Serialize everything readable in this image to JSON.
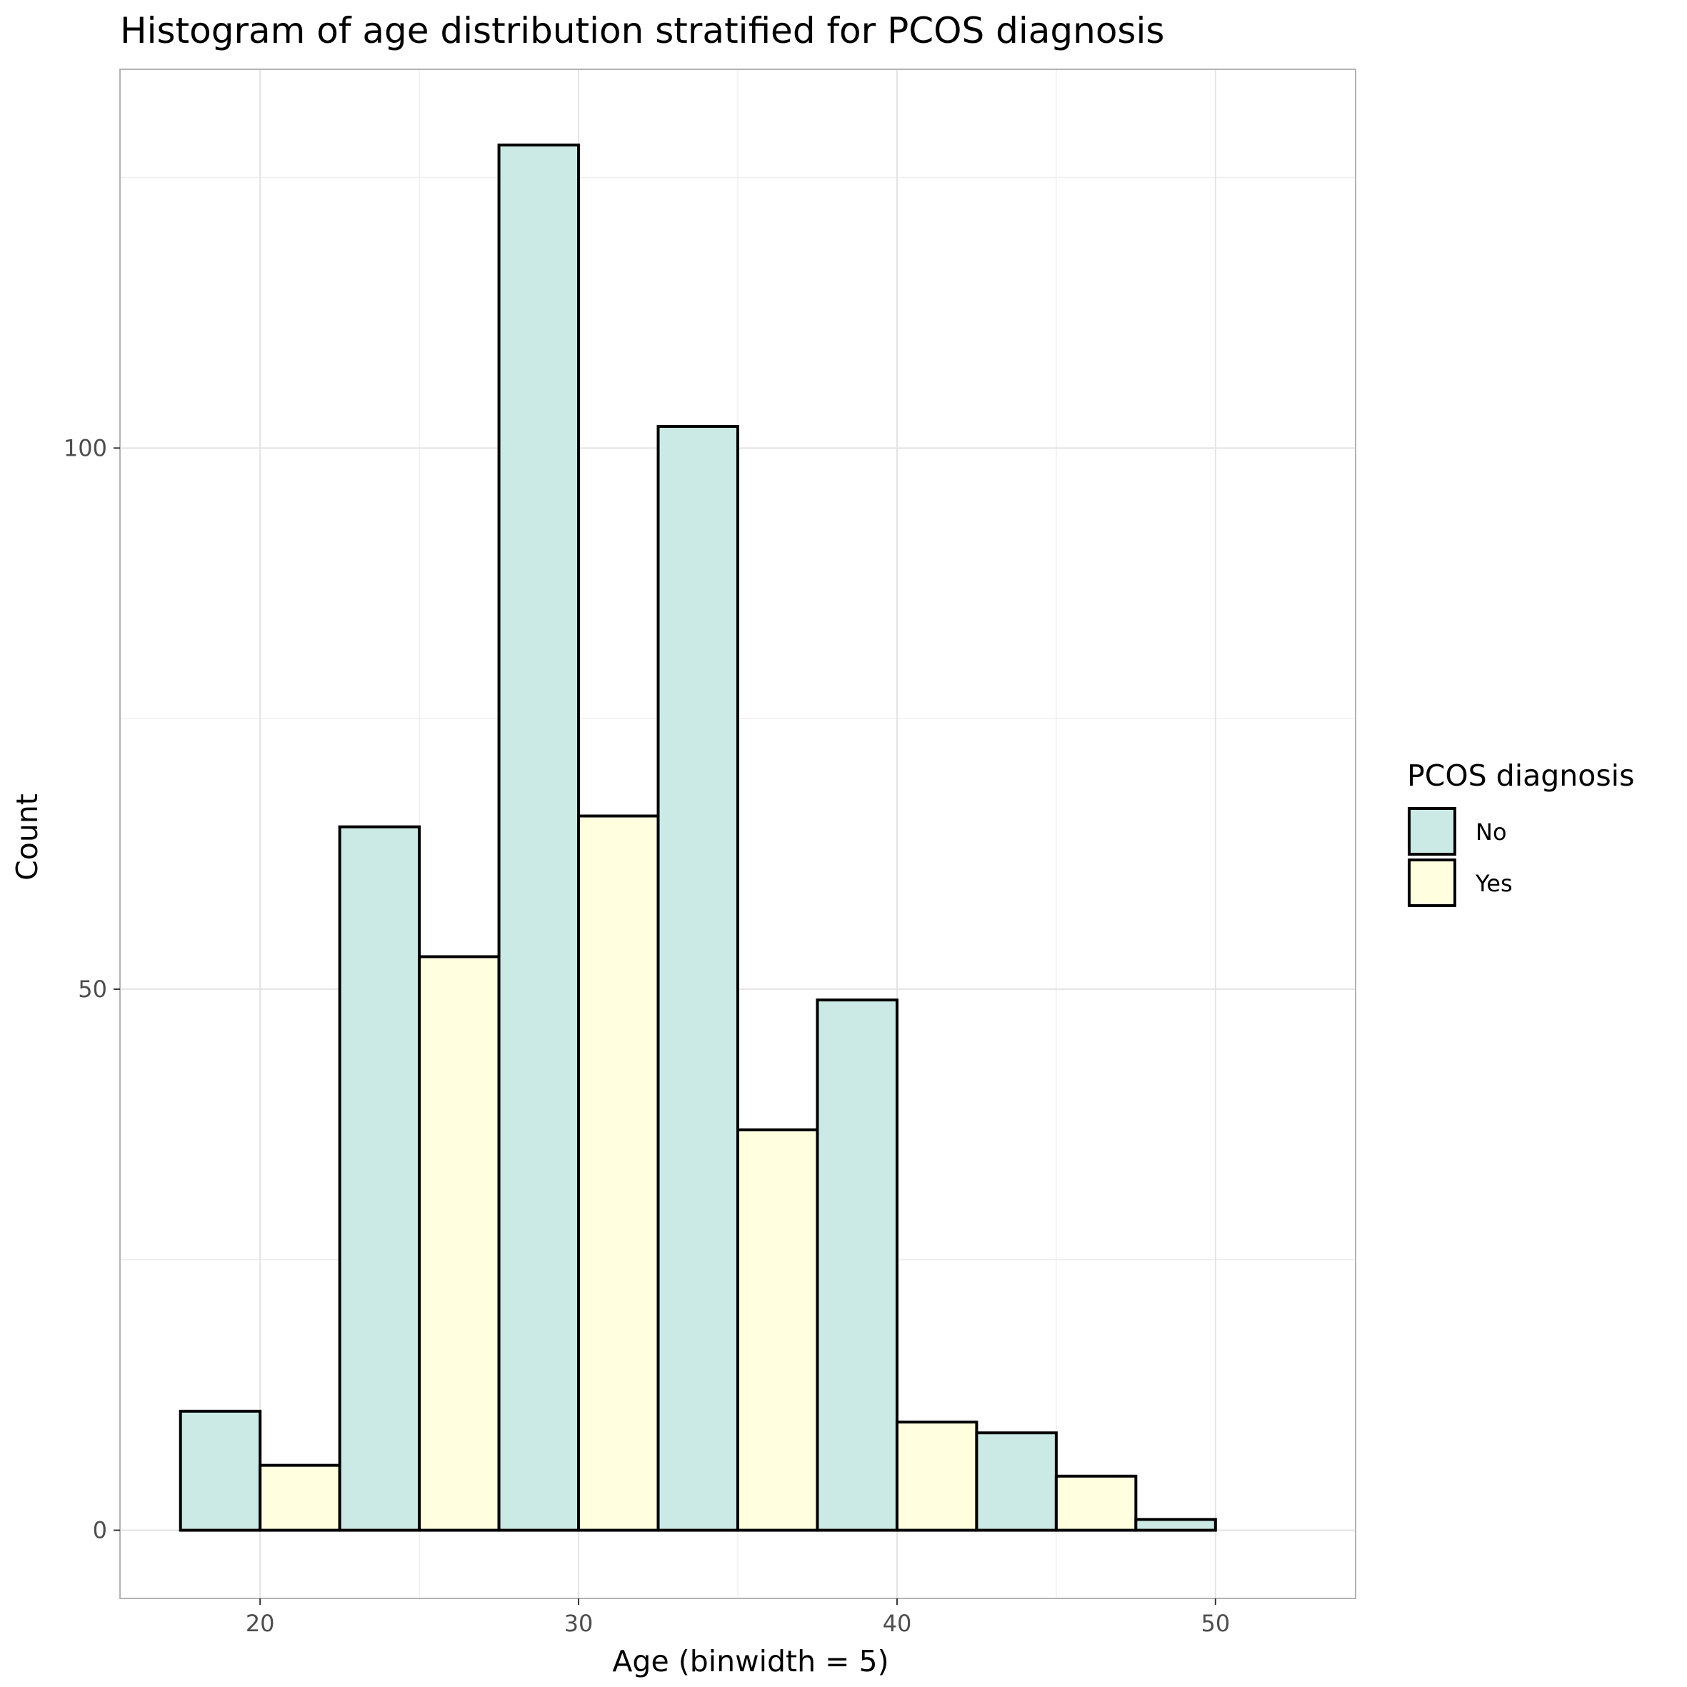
{
  "chart_data": {
    "type": "bar",
    "subtype": "histogram",
    "title": "Histogram of age distribution stratified for PCOS diagnosis",
    "xlabel": "Age (binwidth = 5)",
    "ylabel": "Count",
    "xlim": [
      15.6,
      54.4
    ],
    "ylim": [
      -6.3,
      135
    ],
    "x_ticks": [
      20,
      30,
      40,
      50
    ],
    "y_ticks": [
      0,
      50,
      100
    ],
    "grid": true,
    "legend": {
      "title": "PCOS diagnosis",
      "position": "right",
      "entries": [
        {
          "label": "No",
          "color": "#cceae5"
        },
        {
          "label": "Yes",
          "color": "#ffffe0"
        }
      ]
    },
    "bins": [
      {
        "xmin": 17.5,
        "xmax": 20.0,
        "count": 11,
        "group": "No"
      },
      {
        "xmin": 20.0,
        "xmax": 22.5,
        "count": 6,
        "group": "Yes"
      },
      {
        "xmin": 22.5,
        "xmax": 25.0,
        "count": 65,
        "group": "No"
      },
      {
        "xmin": 25.0,
        "xmax": 27.5,
        "count": 53,
        "group": "Yes"
      },
      {
        "xmin": 27.5,
        "xmax": 30.0,
        "count": 128,
        "group": "No"
      },
      {
        "xmin": 30.0,
        "xmax": 32.5,
        "count": 66,
        "group": "Yes"
      },
      {
        "xmin": 32.5,
        "xmax": 35.0,
        "count": 102,
        "group": "No"
      },
      {
        "xmin": 35.0,
        "xmax": 37.5,
        "count": 37,
        "group": "Yes"
      },
      {
        "xmin": 37.5,
        "xmax": 40.0,
        "count": 49,
        "group": "No"
      },
      {
        "xmin": 40.0,
        "xmax": 42.5,
        "count": 10,
        "group": "Yes"
      },
      {
        "xmin": 42.5,
        "xmax": 45.0,
        "count": 9,
        "group": "No"
      },
      {
        "xmin": 45.0,
        "xmax": 47.5,
        "count": 5,
        "group": "Yes"
      },
      {
        "xmin": 47.5,
        "xmax": 50.0,
        "count": 1,
        "group": "No"
      },
      {
        "xmin": 50.0,
        "xmax": 52.5,
        "count": 0,
        "group": "Yes"
      }
    ]
  }
}
